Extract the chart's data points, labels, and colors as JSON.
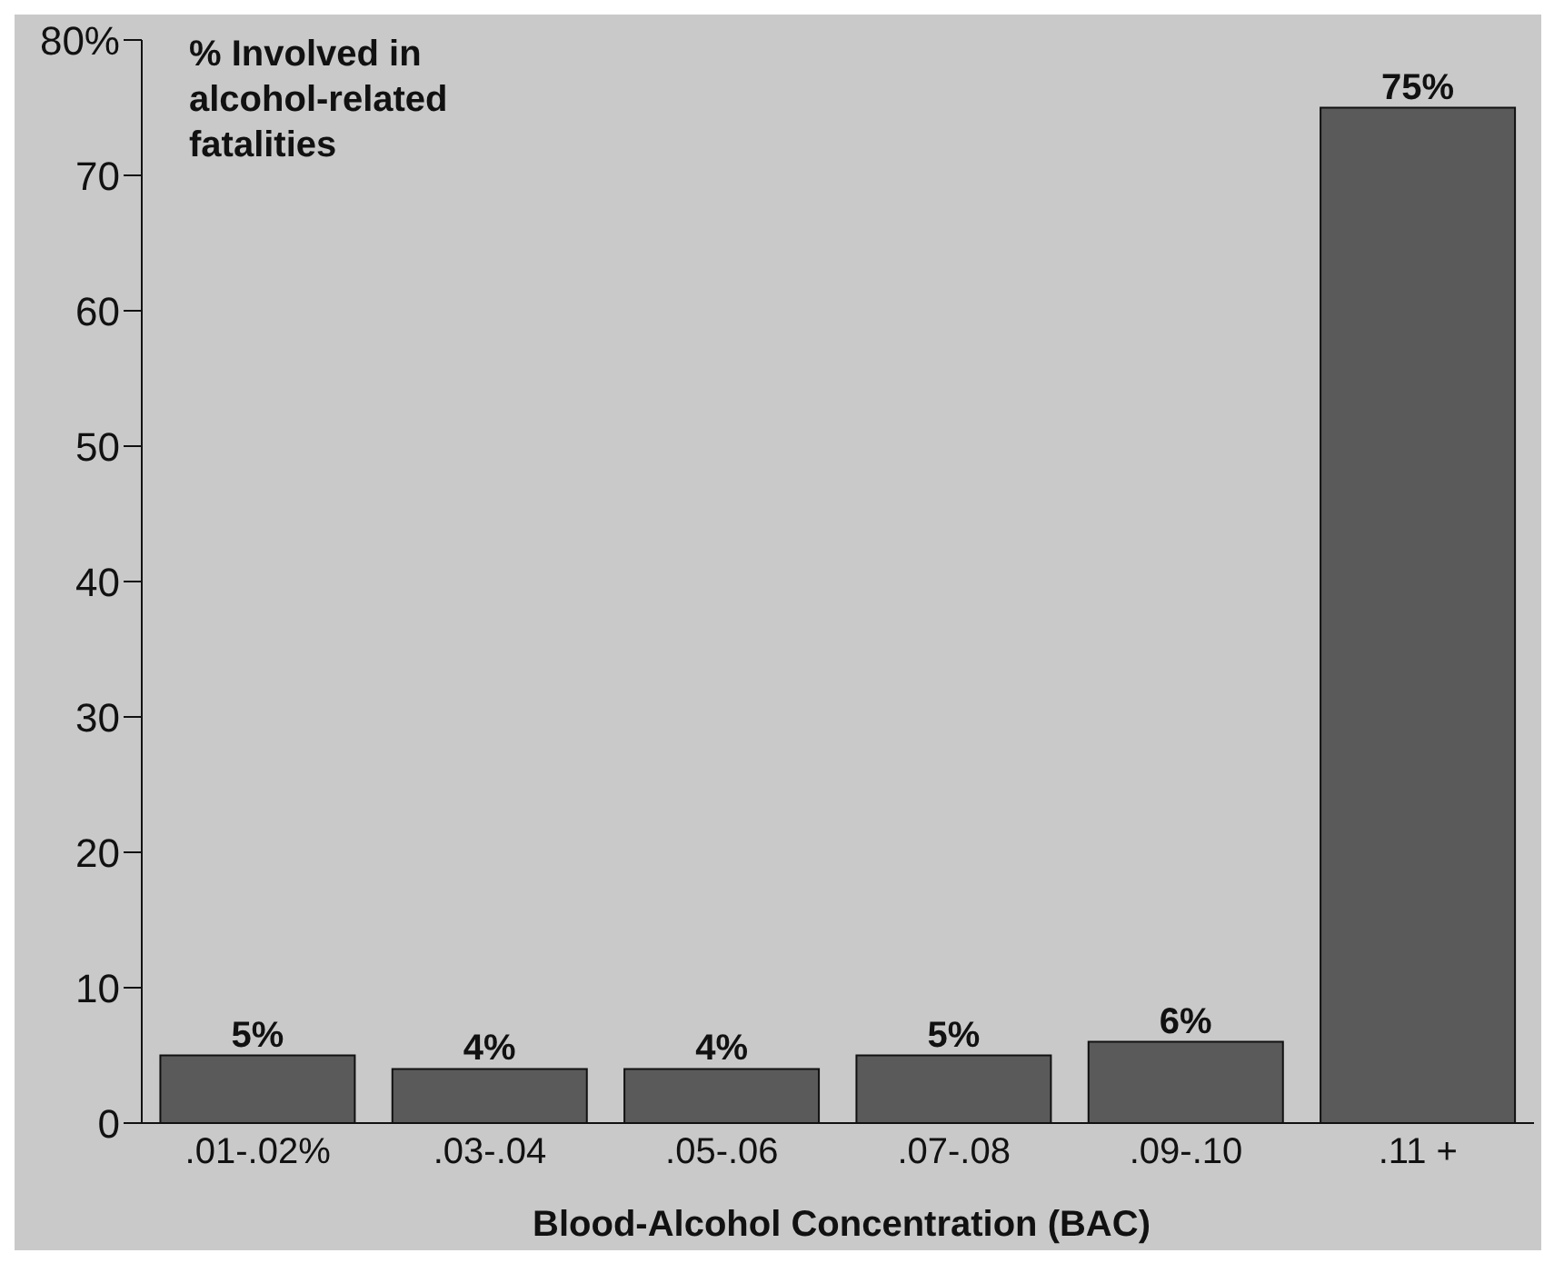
{
  "chart_data": {
    "type": "bar",
    "ylabel": "% Involved in alcohol-related fatalities",
    "xlabel": "Blood-Alcohol Concentration (BAC)",
    "categories": [
      ".01-.02%",
      ".03-.04",
      ".05-.06",
      ".07-.08",
      ".09-.10",
      ".11 +"
    ],
    "values": [
      5,
      4,
      4,
      5,
      6,
      75
    ],
    "color": "#5a5a5a",
    "value_labels": [
      "5%",
      "4%",
      "4%",
      "5%",
      "6%",
      "75%"
    ],
    "ylim": [
      0,
      80
    ],
    "yticks": [
      0,
      10,
      20,
      30,
      40,
      50,
      60,
      70,
      {
        "value": 80,
        "label": "80%"
      }
    ]
  }
}
